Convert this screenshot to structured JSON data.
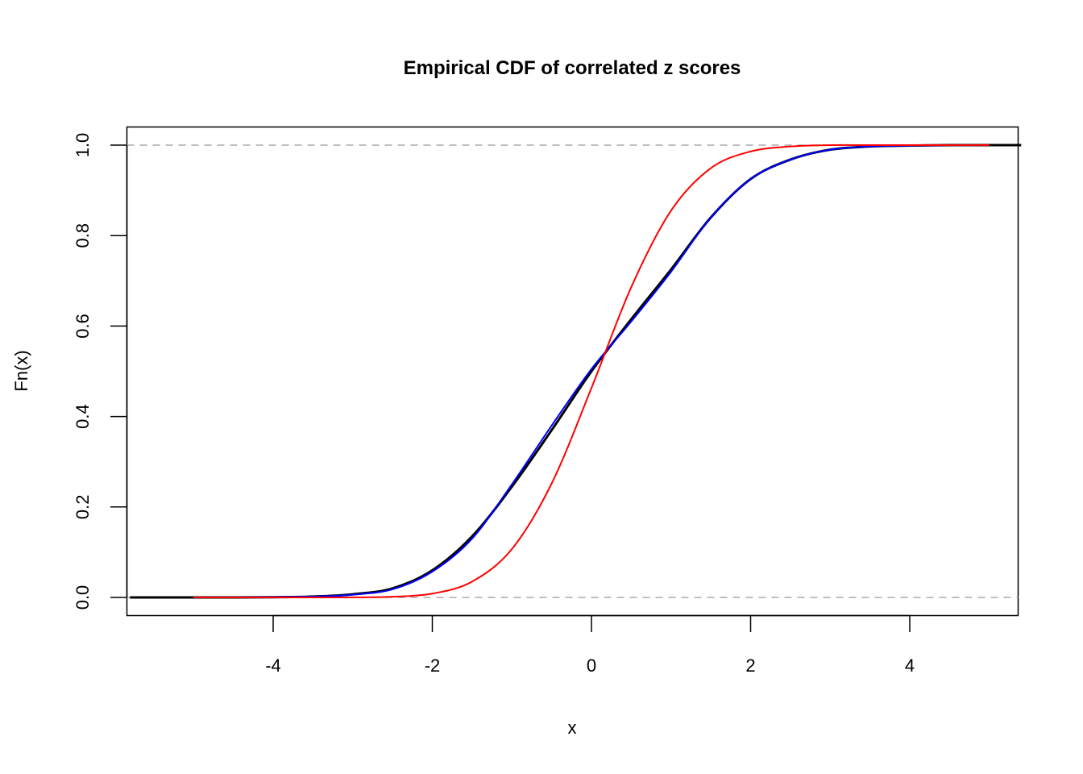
{
  "chart_data": {
    "type": "line",
    "title": "Empirical CDF of correlated z scores",
    "xlabel": "x",
    "ylabel": "Fn(x)",
    "xlim": [
      -5.8,
      5.4
    ],
    "ylim": [
      -0.04,
      1.04
    ],
    "x_ticks": [
      "-4",
      "-2",
      "0",
      "2",
      "4"
    ],
    "x_tick_values": [
      -4,
      -2,
      0,
      2,
      4
    ],
    "y_ticks": [
      "0.0",
      "0.2",
      "0.4",
      "0.6",
      "0.8",
      "1.0"
    ],
    "y_tick_values": [
      0,
      0.2,
      0.4,
      0.6,
      0.8,
      1.0
    ],
    "grid": false,
    "reference_lines": [
      0,
      1
    ],
    "series": [
      {
        "color": "#000000",
        "x": [
          -5.8,
          -5,
          -4.5,
          -4,
          -3.5,
          -3,
          -2.5,
          -2,
          -1.5,
          -1,
          -0.5,
          0,
          0.5,
          1,
          1.5,
          2,
          2.5,
          3,
          3.5,
          4,
          4.5,
          5,
          5.4
        ],
        "y": [
          0,
          0,
          0,
          0.0005,
          0.002,
          0.007,
          0.02,
          0.06,
          0.135,
          0.245,
          0.37,
          0.5,
          0.615,
          0.725,
          0.84,
          0.925,
          0.968,
          0.99,
          0.997,
          0.999,
          1,
          1,
          1
        ]
      },
      {
        "color": "#0000ff",
        "x": [
          -5,
          -4.5,
          -4,
          -3.5,
          -3,
          -2.5,
          -2,
          -1.5,
          -1,
          -0.5,
          0,
          0.5,
          1,
          1.5,
          2,
          2.5,
          3,
          3.5,
          4,
          4.5,
          5
        ],
        "y": [
          0,
          0,
          0.0005,
          0.002,
          0.006,
          0.018,
          0.057,
          0.13,
          0.25,
          0.38,
          0.505,
          0.61,
          0.72,
          0.84,
          0.925,
          0.968,
          0.99,
          0.997,
          0.999,
          1,
          1
        ]
      },
      {
        "color": "#ff0000",
        "x": [
          -5,
          -4.5,
          -4,
          -3.5,
          -3,
          -2.5,
          -2,
          -1.5,
          -1,
          -0.5,
          0,
          0.5,
          1,
          1.5,
          2,
          2.5,
          3,
          3.5,
          4,
          4.5,
          5
        ],
        "y": [
          0,
          0,
          0,
          0,
          0.0002,
          0.0015,
          0.0084,
          0.035,
          0.107,
          0.252,
          0.463,
          0.686,
          0.855,
          0.949,
          0.986,
          0.997,
          1,
          1,
          1,
          1,
          1
        ]
      }
    ]
  }
}
